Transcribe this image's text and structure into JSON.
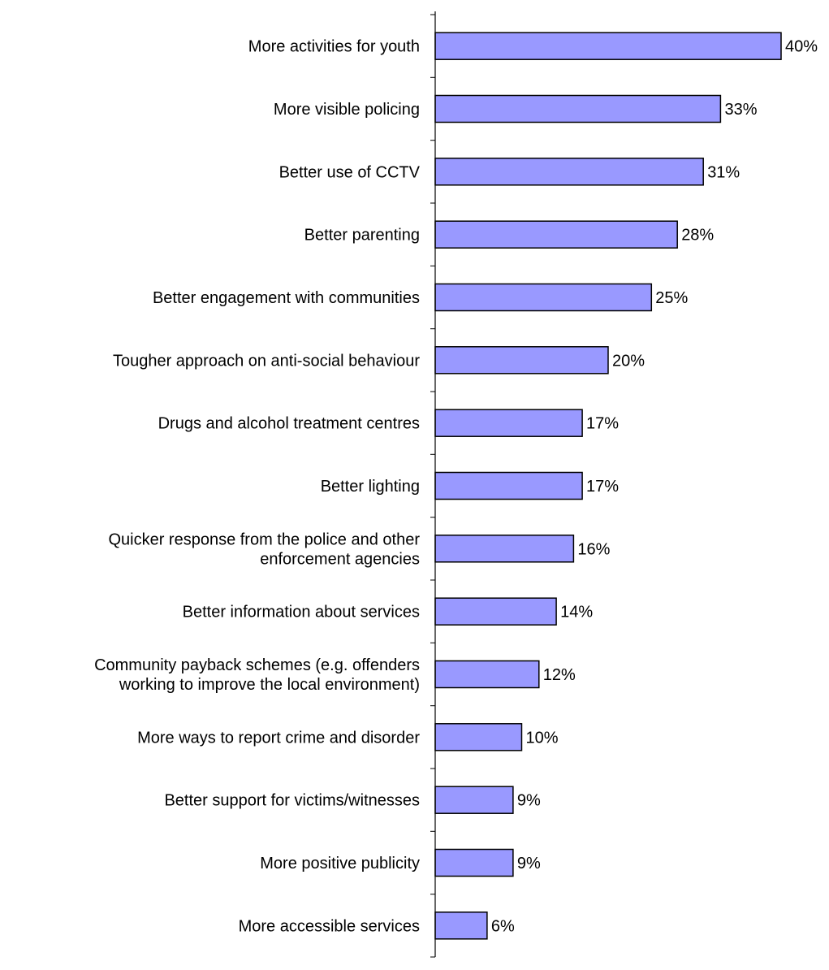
{
  "chart_data": {
    "type": "bar",
    "orientation": "horizontal",
    "categories": [
      [
        "More activities for youth"
      ],
      [
        "More visible policing"
      ],
      [
        "Better use of CCTV"
      ],
      [
        "Better parenting"
      ],
      [
        "Better engagement with communities"
      ],
      [
        "Tougher approach on anti-social behaviour"
      ],
      [
        "Drugs and alcohol treatment centres"
      ],
      [
        "Better lighting"
      ],
      [
        "Quicker response from the police and other",
        "enforcement agencies"
      ],
      [
        "Better information about services"
      ],
      [
        "Community payback schemes (e.g. offenders",
        "working to improve the local environment)"
      ],
      [
        "More ways to report crime and disorder"
      ],
      [
        "Better support for victims/witnesses"
      ],
      [
        "More positive publicity"
      ],
      [
        "More accessible services"
      ]
    ],
    "values": [
      40,
      33,
      31,
      28,
      25,
      20,
      17,
      17,
      16,
      14,
      12,
      10,
      9,
      9,
      6
    ],
    "value_labels": [
      "40%",
      "33%",
      "31%",
      "28%",
      "25%",
      "20%",
      "17%",
      "17%",
      "16%",
      "14%",
      "12%",
      "10%",
      "9%",
      "9%",
      "6%"
    ],
    "title": "",
    "xlabel": "",
    "ylabel": "",
    "xlim": [
      0,
      40
    ],
    "grid": false,
    "legend": "none",
    "colors": {
      "bar_fill": "#9999ff",
      "bar_stroke": "#000000",
      "axis": "#000000",
      "text": "#000000"
    }
  }
}
